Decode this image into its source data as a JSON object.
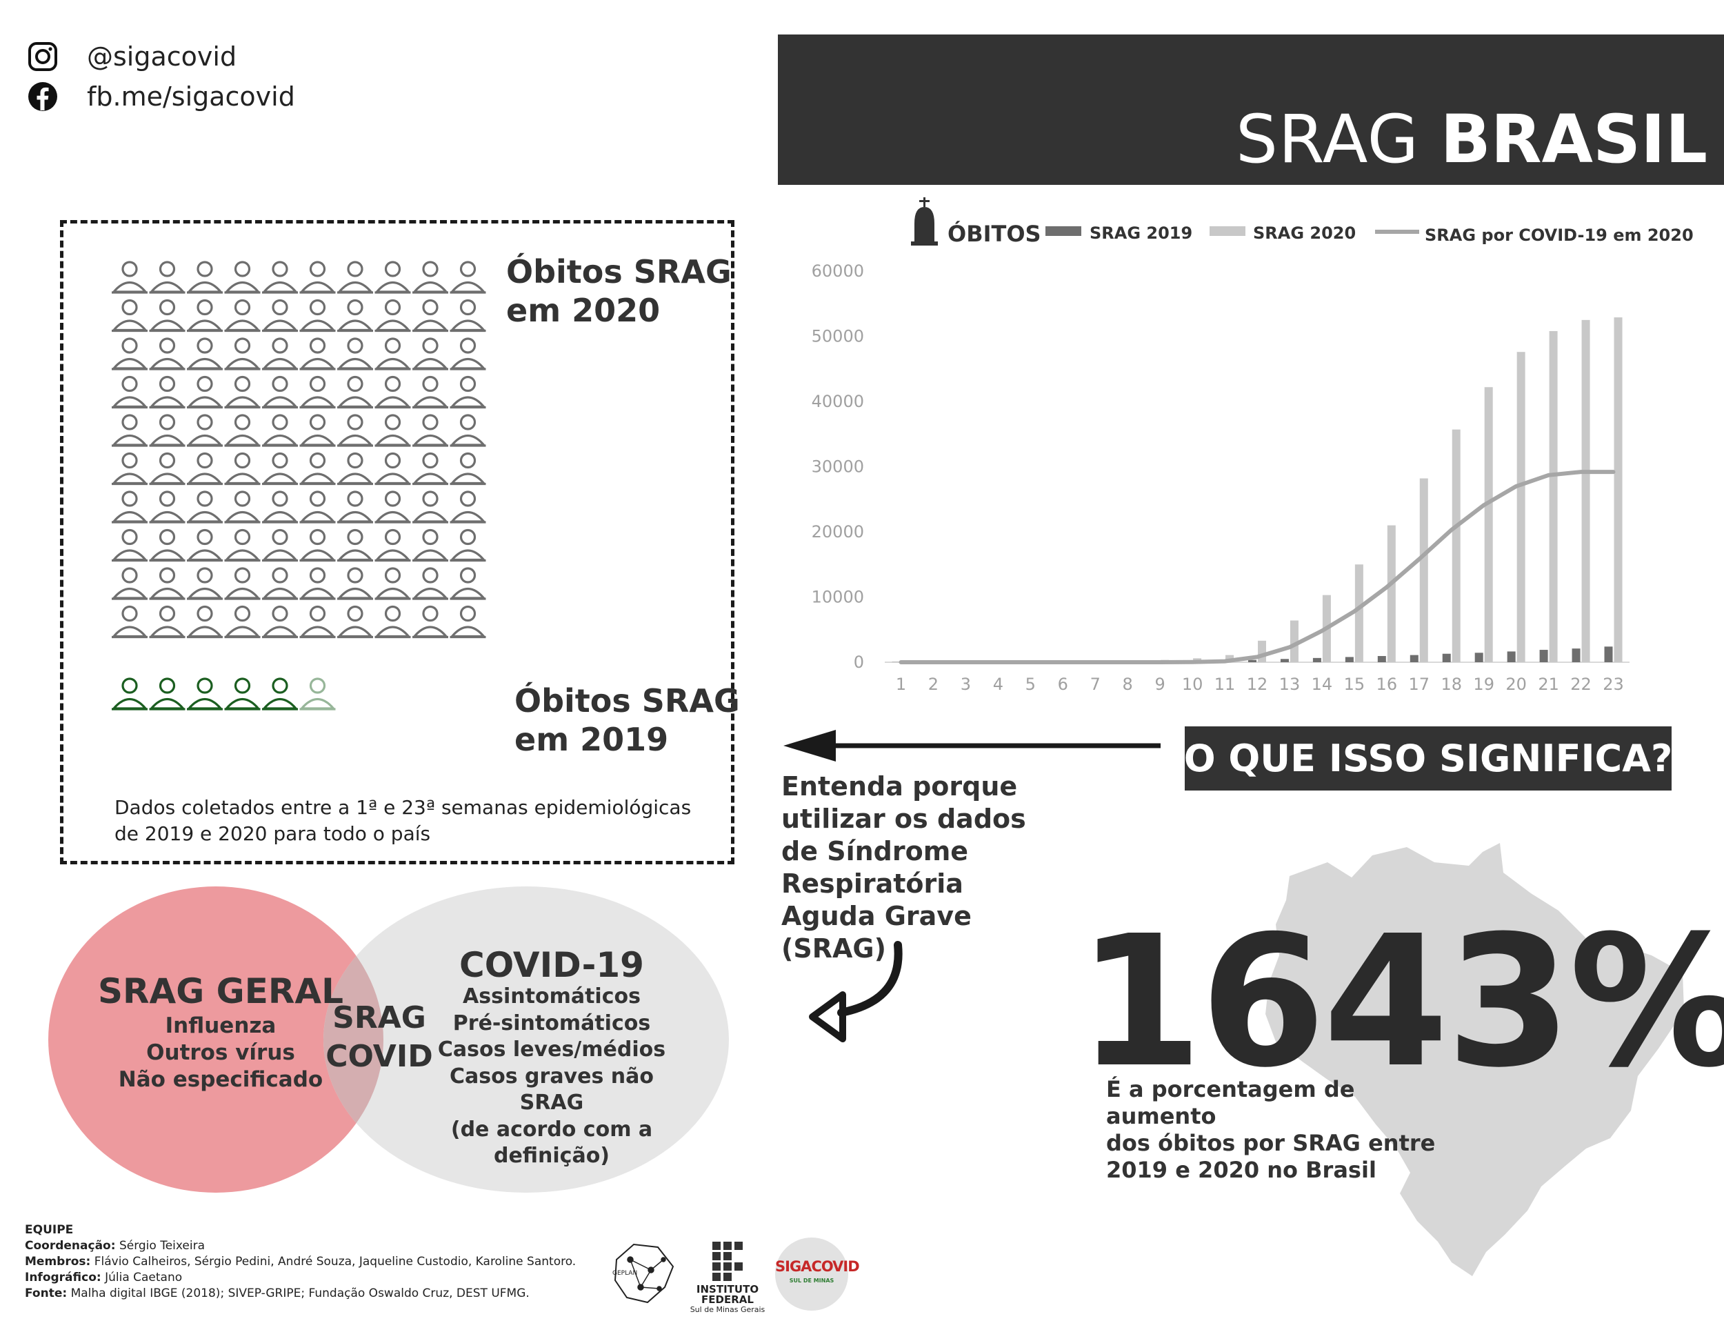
{
  "social": {
    "instagram": "@sigacovid",
    "facebook": "fb.me/sigacovid"
  },
  "header": {
    "title_thin": "SRAG",
    "title_bold": "BRASIL"
  },
  "pictogram": {
    "label_2020": [
      "Óbitos SRAG",
      "em 2020"
    ],
    "label_2019": [
      "Óbitos SRAG",
      "em 2019"
    ],
    "note": "Dados coletados entre a 1ª e 23ª semanas epidemiológicas de 2019 e 2020 para todo o país",
    "color_2020": "#6e6e6e",
    "color_2019": "#1b5e20"
  },
  "chart_data": {
    "type": "bar",
    "legend": {
      "icon_label": "ÓBITOS",
      "series_2019": "SRAG 2019",
      "series_2020": "SRAG 2020",
      "series_covid": "SRAG por COVID-19 em 2020"
    },
    "x": [
      1,
      2,
      3,
      4,
      5,
      6,
      7,
      8,
      9,
      10,
      11,
      12,
      13,
      14,
      15,
      16,
      17,
      18,
      19,
      20,
      21,
      22,
      23
    ],
    "ylim": [
      0,
      60000
    ],
    "yticks": [
      0,
      10000,
      20000,
      30000,
      40000,
      50000,
      60000
    ],
    "series": [
      {
        "name": "SRAG 2019",
        "kind": "bar",
        "color": "#6e6e6e",
        "values": [
          30,
          40,
          45,
          50,
          60,
          80,
          100,
          130,
          160,
          200,
          250,
          350,
          500,
          650,
          800,
          950,
          1100,
          1300,
          1450,
          1650,
          1900,
          2100,
          2400
        ]
      },
      {
        "name": "SRAG 2020",
        "kind": "bar",
        "color": "#c8c8c8",
        "values": [
          60,
          70,
          80,
          90,
          100,
          120,
          150,
          250,
          350,
          600,
          1100,
          3300,
          6400,
          10300,
          15000,
          21000,
          28200,
          35700,
          42200,
          47600,
          50800,
          52500,
          52900
        ]
      },
      {
        "name": "SRAG por COVID-19 em 2020",
        "kind": "line",
        "color": "#a6a6a6",
        "values": [
          0,
          0,
          0,
          0,
          0,
          0,
          0,
          0,
          0,
          20,
          150,
          800,
          2300,
          4800,
          7800,
          11500,
          15800,
          20300,
          24100,
          27000,
          28700,
          29200,
          29200
        ]
      }
    ]
  },
  "question": {
    "title": "O QUE ISSO SIGNIFICA?",
    "explain": [
      "Entenda porque",
      "utilizar os dados",
      "de Síndrome",
      "Respiratória",
      "Aguda Grave",
      "(SRAG)"
    ]
  },
  "highlight": {
    "value": "1643%",
    "caption": [
      "É a porcentagem de aumento",
      "dos óbitos por SRAG entre",
      "2019 e 2020 no Brasil"
    ]
  },
  "venn": {
    "left_title": "SRAG GERAL",
    "left_items": [
      "Influenza",
      "Outros vírus",
      "Não especificado"
    ],
    "middle": [
      "SRAG",
      "COVID"
    ],
    "right_title": "COVID-19",
    "right_items": [
      "Assintomáticos",
      "Pré-sintomáticos",
      "Casos leves/médios",
      "Casos graves não SRAG",
      "(de acordo com a",
      "definição)"
    ],
    "left_color": "#ed9a9e",
    "right_color": "#e6e6e6"
  },
  "footer": {
    "team_label": "EQUIPE",
    "coord_label": "Coordenação:",
    "coord": "Sérgio Teixeira",
    "members_label": "Membros:",
    "members": "Flávio Calheiros, Sérgio Pedini, André Souza, Jaqueline Custodio, Karoline Santoro.",
    "info_label": "Infográfico:",
    "info": "Júlia Caetano",
    "source_label": "Fonte:",
    "source": "Malha digital IBGE (2018); SIVEP-GRIPE; Fundação Oswaldo Cruz, DEST UFMG."
  },
  "logos": {
    "geplan": "GEPLAN",
    "if_line1": "INSTITUTO",
    "if_line2": "FEDERAL",
    "if_line3": "Sul de Minas Gerais",
    "siga_1": "SIGA",
    "siga_2": "COVID",
    "siga_3": "SUL DE MINAS"
  }
}
